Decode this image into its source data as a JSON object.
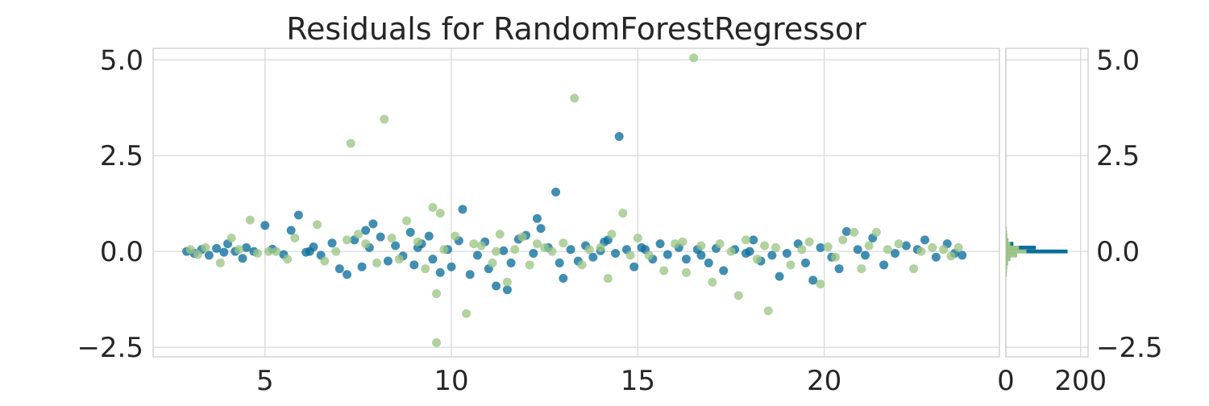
{
  "chart_data": {
    "type": "scatter",
    "title": "Residuals for RandomForestRegressor",
    "xlabel": "",
    "ylabel": "",
    "xlim": [
      2.0,
      24.7
    ],
    "ylim": [
      -2.75,
      5.3
    ],
    "xticks": [
      "5",
      "10",
      "15",
      "20"
    ],
    "yticks": [
      "5.0",
      "2.5",
      "0.0",
      "−2.5"
    ],
    "grid": true,
    "colors": {
      "train": "#0b6e9c",
      "test": "#9cc585",
      "grid": "#d9d9d9",
      "text": "#262626"
    },
    "series": [
      {
        "points": [
          [
            2.9,
            0.0
          ],
          [
            3.1,
            -0.05
          ],
          [
            3.3,
            0.05
          ],
          [
            3.5,
            -0.1
          ],
          [
            3.7,
            0.08
          ],
          [
            3.9,
            -0.02
          ],
          [
            4.0,
            0.2
          ],
          [
            4.2,
            0.0
          ],
          [
            4.4,
            -0.18
          ],
          [
            4.5,
            0.1
          ],
          [
            4.7,
            0.0
          ],
          [
            5.0,
            0.68
          ],
          [
            5.2,
            0.06
          ],
          [
            5.5,
            -0.08
          ],
          [
            5.7,
            0.55
          ],
          [
            5.9,
            0.95
          ],
          [
            6.1,
            -0.02
          ],
          [
            6.3,
            0.12
          ],
          [
            6.5,
            -0.1
          ],
          [
            6.8,
            0.22
          ],
          [
            7.0,
            -0.45
          ],
          [
            7.2,
            -0.6
          ],
          [
            7.4,
            0.3
          ],
          [
            7.6,
            -0.4
          ],
          [
            7.7,
            0.55
          ],
          [
            7.9,
            0.72
          ],
          [
            8.1,
            0.38
          ],
          [
            8.3,
            -0.25
          ],
          [
            8.5,
            0.15
          ],
          [
            8.7,
            -0.12
          ],
          [
            8.9,
            0.5
          ],
          [
            9.0,
            -0.35
          ],
          [
            9.2,
            0.2
          ],
          [
            9.4,
            0.4
          ],
          [
            9.5,
            -0.2
          ],
          [
            9.7,
            -0.55
          ],
          [
            9.9,
            0.05
          ],
          [
            10.2,
            0.28
          ],
          [
            10.3,
            1.1
          ],
          [
            10.5,
            -0.6
          ],
          [
            10.7,
            -0.1
          ],
          [
            10.9,
            0.25
          ],
          [
            11.0,
            -0.45
          ],
          [
            11.2,
            -0.9
          ],
          [
            11.4,
            0.02
          ],
          [
            11.6,
            -0.3
          ],
          [
            11.8,
            0.32
          ],
          [
            12.0,
            0.42
          ],
          [
            12.2,
            -0.05
          ],
          [
            12.3,
            0.86
          ],
          [
            12.4,
            0.6
          ],
          [
            12.6,
            0.1
          ],
          [
            12.8,
            1.55
          ],
          [
            13.0,
            -0.7
          ],
          [
            13.2,
            0.05
          ],
          [
            13.4,
            -0.25
          ],
          [
            13.6,
            0.15
          ],
          [
            13.8,
            -0.15
          ],
          [
            14.0,
            0.02
          ],
          [
            14.2,
            0.3
          ],
          [
            14.4,
            -0.05
          ],
          [
            14.5,
            3.0
          ],
          [
            14.7,
            0.05
          ],
          [
            14.9,
            -0.4
          ],
          [
            15.1,
            0.1
          ],
          [
            15.4,
            -0.2
          ],
          [
            15.6,
            0.2
          ],
          [
            15.8,
            -0.08
          ],
          [
            16.1,
            0.1
          ],
          [
            16.3,
            -0.2
          ],
          [
            16.6,
            0.05
          ],
          [
            16.9,
            -0.3
          ],
          [
            17.1,
            0.08
          ],
          [
            17.3,
            -0.5
          ],
          [
            17.6,
            0.05
          ],
          [
            17.9,
            -0.05
          ],
          [
            18.1,
            0.3
          ],
          [
            18.3,
            -0.25
          ],
          [
            18.6,
            -0.1
          ],
          [
            18.8,
            -0.65
          ],
          [
            19.0,
            -0.05
          ],
          [
            19.3,
            0.2
          ],
          [
            19.5,
            -0.3
          ],
          [
            19.7,
            -0.75
          ],
          [
            19.9,
            0.1
          ],
          [
            20.2,
            -0.15
          ],
          [
            20.4,
            -0.45
          ],
          [
            20.6,
            0.52
          ],
          [
            20.9,
            0.05
          ],
          [
            21.1,
            -0.1
          ],
          [
            21.3,
            0.35
          ],
          [
            21.6,
            -0.35
          ],
          [
            21.9,
            -0.05
          ],
          [
            22.2,
            0.15
          ],
          [
            22.5,
            0.05
          ],
          [
            22.7,
            0.3
          ],
          [
            23.0,
            -0.15
          ],
          [
            23.3,
            0.2
          ],
          [
            23.5,
            -0.05
          ],
          [
            23.7,
            -0.1
          ],
          [
            11.5,
            -1.0
          ],
          [
            9.1,
            0.1
          ],
          [
            10.0,
            -0.4
          ],
          [
            12.9,
            -0.3
          ],
          [
            14.1,
            0.25
          ],
          [
            15.2,
            0.05
          ],
          [
            16.7,
            -0.1
          ],
          [
            18.0,
            0.0
          ],
          [
            7.8,
            0.1
          ],
          [
            6.2,
            0.0
          ]
        ]
      },
      {
        "points": [
          [
            3.0,
            0.05
          ],
          [
            3.2,
            -0.08
          ],
          [
            3.4,
            0.1
          ],
          [
            3.8,
            -0.3
          ],
          [
            4.1,
            0.35
          ],
          [
            4.3,
            0.05
          ],
          [
            4.6,
            0.82
          ],
          [
            4.8,
            -0.05
          ],
          [
            5.3,
            0.0
          ],
          [
            5.6,
            -0.2
          ],
          [
            5.8,
            0.35
          ],
          [
            6.4,
            0.7
          ],
          [
            6.6,
            -0.25
          ],
          [
            6.9,
            0.0
          ],
          [
            7.3,
            2.82
          ],
          [
            7.5,
            0.45
          ],
          [
            7.7,
            0.2
          ],
          [
            8.0,
            -0.3
          ],
          [
            8.2,
            3.45
          ],
          [
            8.4,
            0.35
          ],
          [
            8.6,
            -0.2
          ],
          [
            8.8,
            0.8
          ],
          [
            9.1,
            0.25
          ],
          [
            9.3,
            -0.45
          ],
          [
            9.5,
            1.15
          ],
          [
            9.6,
            -1.1
          ],
          [
            9.6,
            -2.38
          ],
          [
            9.7,
            1.0
          ],
          [
            9.8,
            0.05
          ],
          [
            10.1,
            0.4
          ],
          [
            10.4,
            -1.62
          ],
          [
            10.6,
            0.2
          ],
          [
            10.8,
            0.15
          ],
          [
            11.1,
            -0.3
          ],
          [
            11.3,
            0.45
          ],
          [
            11.5,
            -0.8
          ],
          [
            11.7,
            0.05
          ],
          [
            11.9,
            0.38
          ],
          [
            12.1,
            -0.35
          ],
          [
            12.3,
            0.2
          ],
          [
            12.7,
            0.0
          ],
          [
            13.0,
            0.22
          ],
          [
            13.3,
            4.0
          ],
          [
            13.5,
            -0.35
          ],
          [
            13.7,
            0.05
          ],
          [
            14.0,
            0.1
          ],
          [
            14.2,
            -0.7
          ],
          [
            14.6,
            1.0
          ],
          [
            14.8,
            -0.1
          ],
          [
            15.0,
            0.35
          ],
          [
            15.3,
            -0.1
          ],
          [
            15.7,
            -0.5
          ],
          [
            16.0,
            0.2
          ],
          [
            16.3,
            -0.55
          ],
          [
            16.5,
            5.05
          ],
          [
            16.7,
            0.15
          ],
          [
            17.0,
            -0.8
          ],
          [
            17.2,
            0.2
          ],
          [
            17.5,
            0.0
          ],
          [
            17.7,
            -1.15
          ],
          [
            17.9,
            0.3
          ],
          [
            18.2,
            -0.2
          ],
          [
            18.5,
            -1.55
          ],
          [
            18.7,
            0.1
          ],
          [
            19.1,
            -0.35
          ],
          [
            19.4,
            0.05
          ],
          [
            19.6,
            0.25
          ],
          [
            19.9,
            -0.85
          ],
          [
            20.1,
            0.12
          ],
          [
            20.3,
            -0.15
          ],
          [
            20.5,
            0.3
          ],
          [
            20.8,
            0.5
          ],
          [
            21.0,
            -0.45
          ],
          [
            21.2,
            0.15
          ],
          [
            21.4,
            0.5
          ],
          [
            21.7,
            0.05
          ],
          [
            22.0,
            0.2
          ],
          [
            22.4,
            -0.45
          ],
          [
            22.6,
            0.0
          ],
          [
            22.9,
            0.1
          ],
          [
            23.2,
            0.05
          ],
          [
            23.4,
            -0.12
          ],
          [
            23.6,
            0.1
          ],
          [
            11.2,
            0.0
          ],
          [
            12.5,
            0.1
          ],
          [
            14.3,
            0.45
          ],
          [
            16.2,
            0.25
          ],
          [
            18.4,
            0.15
          ],
          [
            7.2,
            0.3
          ],
          [
            5.1,
            0.0
          ]
        ]
      }
    ],
    "histogram": {
      "xticks": [
        "0",
        "200"
      ],
      "xlim": [
        0,
        220
      ],
      "bin_width": 0.1,
      "train": [
        [
          -0.6,
          2
        ],
        [
          -0.5,
          2
        ],
        [
          -0.4,
          3
        ],
        [
          -0.3,
          5
        ],
        [
          -0.2,
          8
        ],
        [
          -0.1,
          28
        ],
        [
          0.0,
          165
        ],
        [
          0.1,
          80
        ],
        [
          0.2,
          20
        ],
        [
          0.3,
          6
        ],
        [
          0.4,
          3
        ],
        [
          0.5,
          2
        ],
        [
          0.6,
          1
        ]
      ],
      "test": [
        [
          -0.6,
          2
        ],
        [
          -0.5,
          3
        ],
        [
          -0.4,
          4
        ],
        [
          -0.3,
          6
        ],
        [
          -0.2,
          12
        ],
        [
          -0.1,
          30
        ],
        [
          0.0,
          55
        ],
        [
          0.1,
          35
        ],
        [
          0.2,
          12
        ],
        [
          0.3,
          7
        ],
        [
          0.4,
          4
        ],
        [
          0.5,
          3
        ],
        [
          0.6,
          2
        ]
      ]
    }
  }
}
